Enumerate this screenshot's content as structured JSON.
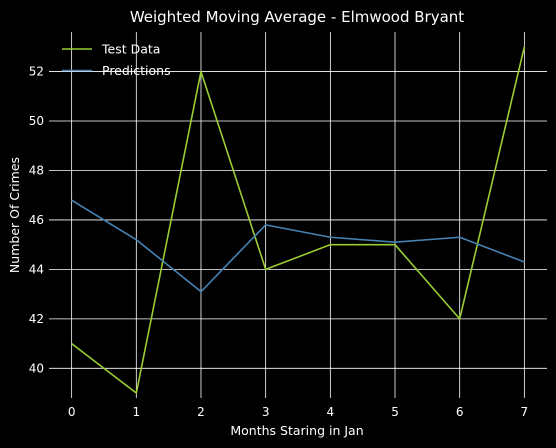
{
  "chart_data": {
    "type": "line",
    "title": "Weighted Moving Average - Elmwood Bryant",
    "xlabel": "Months Staring in Jan",
    "ylabel": "Number Of Crimes",
    "x": [
      0,
      1,
      2,
      3,
      4,
      5,
      6,
      7
    ],
    "xlim": [
      -0.35,
      7.35
    ],
    "ylim": [
      38.8,
      53.6
    ],
    "xticks": [
      "0",
      "1",
      "2",
      "3",
      "4",
      "5",
      "6",
      "7"
    ],
    "yticks": [
      "40",
      "42",
      "44",
      "46",
      "48",
      "50",
      "52"
    ],
    "grid": true,
    "legend": "upper-left",
    "series": [
      {
        "name": "Test Data",
        "color": "#9acd32",
        "values": [
          41,
          39,
          52,
          44,
          45,
          45,
          42,
          53
        ]
      },
      {
        "name": "Predictions",
        "color": "#4682b4",
        "values": [
          46.8,
          45.2,
          43.1,
          45.8,
          45.3,
          45.1,
          45.3,
          44.3
        ]
      }
    ]
  }
}
